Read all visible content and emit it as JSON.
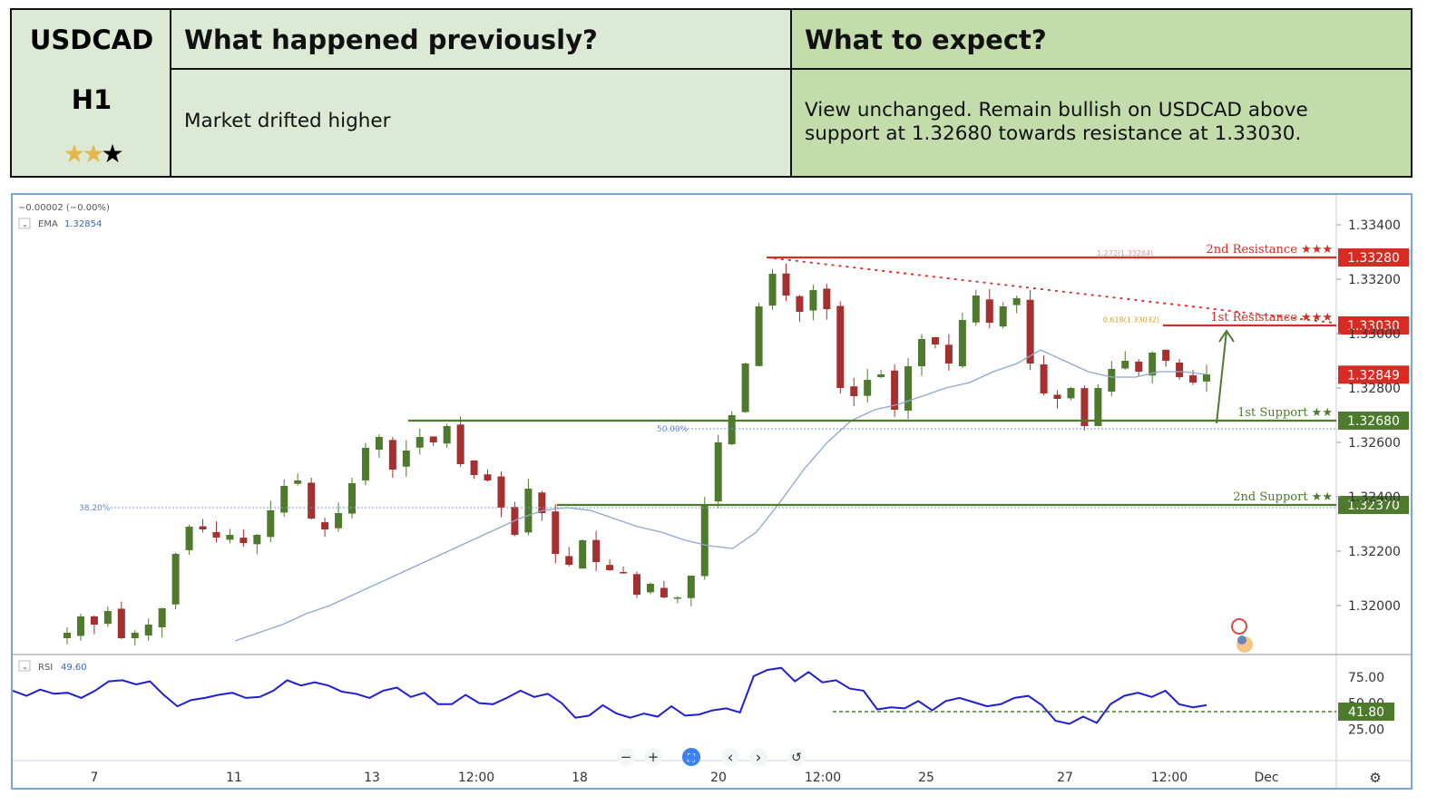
{
  "header": {
    "symbol": "USDCAD",
    "timeframe": "H1",
    "stars": {
      "filled": 2,
      "total": 3
    },
    "prev_title": "What happened previously?",
    "prev_body": "Market drifted higher",
    "expect_title": "What to expect?",
    "expect_body_line1": "View unchanged. Remain bullish on USDCAD above",
    "expect_body_line2": "support at 1.32680 towards resistance at 1.33030."
  },
  "legend": {
    "change": "−0.00002 (−0.00%)",
    "ema_label": "EMA",
    "ema_value": "1.32854",
    "rsi_label": "RSI",
    "rsi_value": "49.60"
  },
  "toolbar": {
    "zoom_out": "−",
    "zoom_in": "+",
    "prev": "‹",
    "next": "›",
    "reset": "↺"
  },
  "chart_data": {
    "type": "line",
    "title": "",
    "xlabel": "",
    "ylabel": "",
    "ylim": [
      1.3188,
      1.3344
    ],
    "x_ticks": [
      "7",
      "11",
      "13",
      "12:00",
      "18",
      "20",
      "12:00",
      "25",
      "27",
      "12:00",
      "Dec"
    ],
    "y_ticks": [
      "1.33400",
      "1.33200",
      "1.33000",
      "1.32800",
      "1.32600",
      "1.32400",
      "1.32200",
      "1.32000"
    ],
    "price_series_approx": [
      1.319,
      1.3196,
      1.3193,
      1.3198,
      1.3188,
      1.319,
      1.3193,
      1.3199,
      1.3219,
      1.3229,
      1.3228,
      1.3225,
      1.3226,
      1.3223,
      1.3226,
      1.3235,
      1.3244,
      1.3246,
      1.3232,
      1.3228,
      1.3234,
      1.3245,
      1.3258,
      1.3262,
      1.325,
      1.3257,
      1.3262,
      1.326,
      1.3266,
      1.3252,
      1.3248,
      1.3246,
      1.3236,
      1.3226,
      1.3243,
      1.3234,
      1.3219,
      1.3215,
      1.3224,
      1.3216,
      1.3213,
      1.3212,
      1.3204,
      1.3208,
      1.3203,
      1.3203,
      1.3211,
      1.3237,
      1.326,
      1.327,
      1.3289,
      1.331,
      1.3322,
      1.3314,
      1.3308,
      1.3316,
      1.3309,
      1.328,
      1.3277,
      1.3283,
      1.3285,
      1.3272,
      1.3288,
      1.3298,
      1.3296,
      1.3289,
      1.3305,
      1.3314,
      1.3304,
      1.331,
      1.3313,
      1.3289,
      1.3278,
      1.3276,
      1.328,
      1.3266,
      1.328,
      1.3287,
      1.329,
      1.3286,
      1.3293,
      1.329,
      1.3284,
      1.3282,
      1.3285
    ],
    "ema_series_approx": [
      1.3187,
      1.319,
      1.3193,
      1.3197,
      1.32,
      1.3204,
      1.3208,
      1.3212,
      1.3216,
      1.322,
      1.3224,
      1.3228,
      1.3232,
      1.3235,
      1.3236,
      1.3235,
      1.3232,
      1.3229,
      1.3227,
      1.3224,
      1.3222,
      1.3221,
      1.3227,
      1.3238,
      1.325,
      1.326,
      1.3268,
      1.3272,
      1.3274,
      1.3277,
      1.328,
      1.3282,
      1.3286,
      1.3289,
      1.3294,
      1.329,
      1.3286,
      1.3284,
      1.3284,
      1.3286,
      1.3286,
      1.3285
    ],
    "levels": [
      {
        "name": "2nd Resistance",
        "stars": "★★★",
        "value": 1.3328,
        "label": "1.33280",
        "color": "#d72b24"
      },
      {
        "name": "1st Resistance",
        "stars": "★★★",
        "value": 1.3303,
        "label": "1.33030",
        "color": "#d72b24"
      },
      {
        "name": "1st Support",
        "stars": "★★",
        "value": 1.3268,
        "label": "1.32680",
        "color": "#4d7a2d"
      },
      {
        "name": "2nd Support",
        "stars": "★★",
        "value": 1.3237,
        "label": "1.32370",
        "color": "#4d7a2d"
      }
    ],
    "current_price": {
      "value": 1.32849,
      "label": "1.32849",
      "color": "#d72b24"
    },
    "fib_levels": [
      {
        "label": "1.272(1.33284)",
        "value": 1.33284
      },
      {
        "label": "0.618(1.33032)",
        "value": 1.33032
      },
      {
        "label": "50.00%",
        "value": 1.3265
      },
      {
        "label": "38.20%",
        "value": 1.3236
      }
    ],
    "rsi": {
      "ylim": [
        20,
        90
      ],
      "y_ticks": [
        "75.00",
        "50.00",
        "25.00"
      ],
      "level": {
        "value": 41.8,
        "label": "41.80",
        "color": "#4d7a2d"
      },
      "values_approx": [
        62,
        57,
        63,
        59,
        60,
        55,
        62,
        71,
        72,
        68,
        71,
        58,
        47,
        53,
        55,
        58,
        60,
        55,
        56,
        62,
        72,
        67,
        70,
        67,
        61,
        59,
        55,
        62,
        65,
        56,
        60,
        49,
        49,
        58,
        50,
        49,
        55,
        62,
        56,
        59,
        50,
        36,
        38,
        48,
        40,
        36,
        40,
        37,
        47,
        38,
        39,
        43,
        45,
        41,
        76,
        82,
        84,
        71,
        80,
        70,
        72,
        64,
        62,
        44,
        46,
        45,
        52,
        43,
        52,
        55,
        51,
        47,
        49,
        55,
        57,
        48,
        33,
        30,
        37,
        31,
        49,
        57,
        60,
        56,
        62,
        49,
        46,
        48
      ]
    },
    "colors": {
      "bull": "#4d7a2d",
      "bear": "#a62f2f",
      "ema": "#8fa7cc",
      "rsi": "#1f1fd0",
      "projection_arrow": "#4d7a2d"
    }
  }
}
